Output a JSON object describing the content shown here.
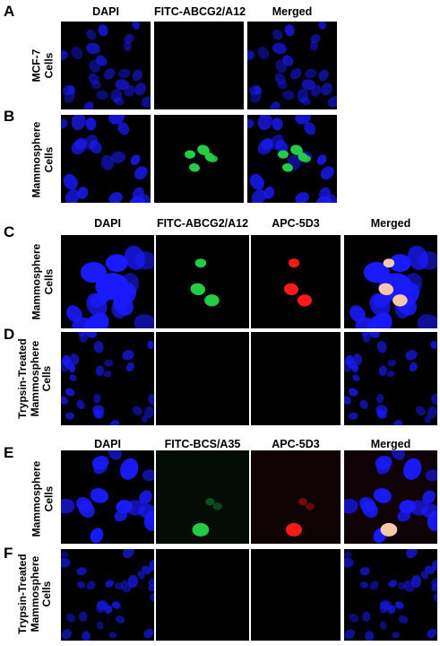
{
  "panels": {
    "A": {
      "letter": "A",
      "headers": [
        "DAPI",
        "FITC-ABCG2/A12",
        "Merged"
      ],
      "row_label": [
        "MCF-7",
        "Cells"
      ]
    },
    "B": {
      "letter": "B",
      "row_label": [
        "Mammosphere",
        "Cells"
      ]
    },
    "C": {
      "letter": "C",
      "headers": [
        "DAPI",
        "FITC-ABCG2/A12",
        "APC-5D3",
        "Merged"
      ],
      "row_label": [
        "Mammosphere",
        "Cells"
      ]
    },
    "D": {
      "letter": "D",
      "row_label": [
        "Trypsin-Treated",
        "Mammosphere",
        "Cells"
      ]
    },
    "E": {
      "letter": "E",
      "headers": [
        "DAPI",
        "FITC-BCS/A35",
        "APC-5D3",
        "Merged"
      ],
      "row_label": [
        "Mammosphere",
        "Cells"
      ]
    },
    "F": {
      "letter": "F",
      "row_label": [
        "Trypsin-Treated",
        "Mammosphere",
        "Cells"
      ]
    }
  },
  "colors": {
    "dapi": "#1a1aff",
    "fitc": "#22cc44",
    "apc": "#ff1a1a",
    "merged_overlap": "#f6c8a8",
    "background": "#000000"
  }
}
